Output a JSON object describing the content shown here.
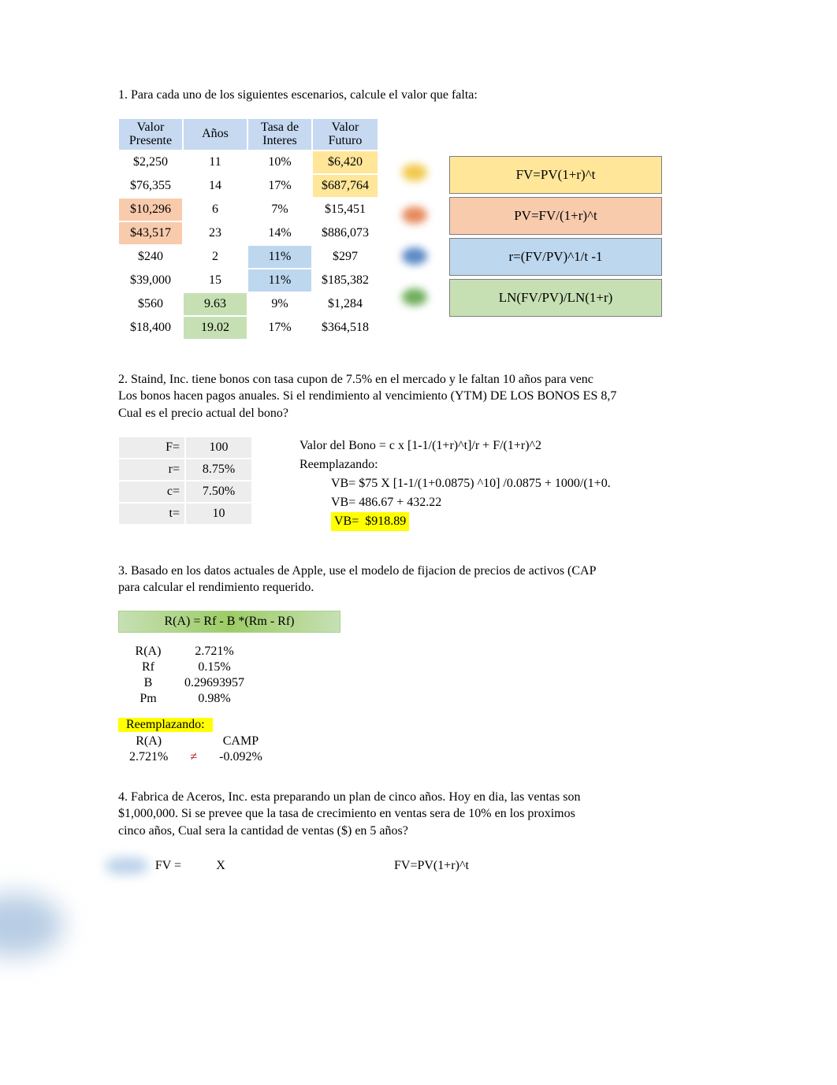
{
  "section1": {
    "prompt": "1. Para cada uno de los siguientes escenarios, calcule el valor que falta:",
    "headers": {
      "pv": "Valor Presente",
      "years": "Años",
      "rate": "Tasa de Interes",
      "fv": "Valor Futuro"
    },
    "rows": [
      {
        "pv": "$2,250",
        "years": "11",
        "rate": "10%",
        "fv": "$6,420",
        "fv_cls": "bg-yellow",
        "bar_cls": ""
      },
      {
        "pv": "$76,355",
        "years": "14",
        "rate": "17%",
        "fv": "$687,764",
        "fv_cls": "bg-yellow",
        "bar_cls": ""
      },
      {
        "pv": "$10,296",
        "years": "6",
        "rate": "7%",
        "fv": "$15,451",
        "fv_cls": "",
        "bar_cls": "bg-orange",
        "pv_cls": "bg-orange"
      },
      {
        "pv": "$43,517",
        "years": "23",
        "rate": "14%",
        "fv": "$886,073",
        "fv_cls": "",
        "bar_cls": "bg-orange",
        "pv_cls": "bg-orange"
      },
      {
        "pv": "$240",
        "years": "2",
        "rate": "11%",
        "fv": "$297",
        "fv_cls": "",
        "bar_cls": "",
        "rate_cls": "bg-blue"
      },
      {
        "pv": "$39,000",
        "years": "15",
        "rate": "11%",
        "fv": "$185,382",
        "fv_cls": "",
        "bar_cls": "",
        "rate_cls": "bg-blue"
      },
      {
        "pv": "$560",
        "years": "9.63",
        "rate": "9%",
        "fv": "$1,284",
        "fv_cls": "",
        "bar_cls": "",
        "years_cls": "bg-green"
      },
      {
        "pv": "$18,400",
        "years": "19.02",
        "rate": "17%",
        "fv": "$364,518",
        "fv_cls": "",
        "bar_cls": "",
        "years_cls": "bg-green"
      }
    ],
    "formulas": [
      {
        "text": "FV=PV(1+r)^t",
        "cls": "fb-yellow",
        "dot": "dot-yellow"
      },
      {
        "text": "PV=FV/(1+r)^t",
        "cls": "fb-orange",
        "dot": "dot-orange"
      },
      {
        "text": "r=(FV/PV)^1/t -1",
        "cls": "fb-blue",
        "dot": "dot-blue"
      },
      {
        "text": "LN(FV/PV)/LN(1+r)",
        "cls": "fb-green",
        "dot": "dot-green"
      }
    ]
  },
  "section2": {
    "prompt_l1": "2. Staind, Inc. tiene bonos con tasa cupon de 7.5% en el mercado y le faltan 10 años para venc",
    "prompt_l2": "Los bonos hacen pagos anuales. Si el rendimiento al vencimiento (YTM) DE LOS BONOS ES 8,7",
    "prompt_l3": "Cual es el precio actual del bono?",
    "vars": [
      {
        "lbl": "F=",
        "val": "100"
      },
      {
        "lbl": "r=",
        "val": "8.75%"
      },
      {
        "lbl": "c=",
        "val": "7.50%"
      },
      {
        "lbl": "t=",
        "val": "10"
      }
    ],
    "calc": {
      "l1": "Valor del Bono = c x [1-1/(1+r)^t]/r + F/(1+r)^2",
      "l2": "Reemplazando:",
      "l3": "VB= $75 X [1-1/(1+0.0875) ^10] /0.0875 + 1000/(1+0.",
      "l4": "VB= 486.67 + 432.22",
      "l5a": "VB=",
      "l5b": "$918.89"
    }
  },
  "section3": {
    "prompt_l1": "3. Basado en los datos actuales de Apple, use el modelo de fijacion de precios de activos (CAP",
    "prompt_l2": "para calcular el rendimiento requerido.",
    "formula": "R(A) = Rf - B *(Rm - Rf)",
    "vars": [
      {
        "lbl": "R(A)",
        "val": "2.721%"
      },
      {
        "lbl": "Rf",
        "val": "0.15%"
      },
      {
        "lbl": "B",
        "val": "0.29693957"
      },
      {
        "lbl": "Pm",
        "val": "0.98%"
      }
    ],
    "reemp": "Reemplazando:",
    "row_header": {
      "a": "R(A)",
      "b": "",
      "c": "CAMP"
    },
    "row_values": {
      "a": "2.721%",
      "b": "≠",
      "c": "-0.092%"
    }
  },
  "section4": {
    "prompt_l1": "4. Fabrica de Aceros, Inc. esta preparando un plan de cinco años. Hoy en dia, las ventas son",
    "prompt_l2": "$1,000,000. Si se prevee que la tasa de crecimiento en ventas sera de 10% en los proximos",
    "prompt_l3": "cinco años, Cual sera la cantidad de ventas ($) en 5 años?",
    "left_lbl": "FV =",
    "left_val": "X",
    "right": "FV=PV(1+r)^t"
  }
}
